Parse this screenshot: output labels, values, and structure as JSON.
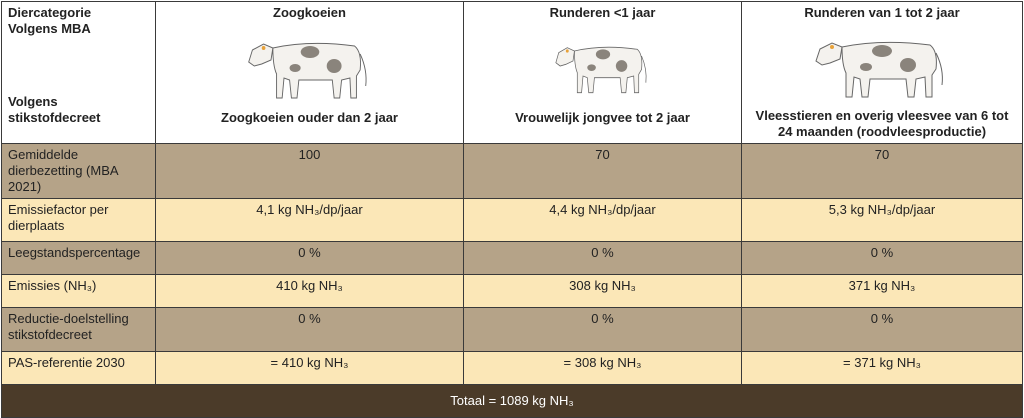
{
  "header": {
    "category_label": [
      "Diercategorie",
      "Volgens MBA"
    ],
    "decree_label": "Volgens stikstofdecreet",
    "columns": [
      {
        "title": "Zoogkoeien",
        "subtitle": "Zoogkoeien ouder dan 2 jaar"
      },
      {
        "title": "Runderen <1 jaar",
        "subtitle": "Vrouwelijk jongvee tot 2 jaar"
      },
      {
        "title": "Runderen van 1 tot 2 jaar",
        "subtitle": "Vleesstieren en overig vleesvee van 6 tot 24 maanden (roodvleesproductie)"
      }
    ]
  },
  "table": {
    "rows": [
      {
        "label": "Gemiddelde dierbezetting (MBA 2021)",
        "cells": [
          "100",
          "70",
          "70"
        ]
      },
      {
        "label": "Emissiefactor per dierplaats",
        "cells": [
          "4,1 kg NH₃/dp/jaar",
          "4,4 kg NH₃/dp/jaar",
          "5,3 kg NH₃/dp/jaar"
        ]
      },
      {
        "label": "Leegstandspercentage",
        "cells": [
          "0 %",
          "0 %",
          "0 %"
        ]
      },
      {
        "label": "Emissies (NH₃)",
        "cells": [
          "410 kg NH₃",
          "308 kg NH₃",
          "371 kg NH₃"
        ]
      },
      {
        "label": "Reductie-doelstelling stikstofdecreet",
        "cells": [
          "0 %",
          "0 %",
          "0 %"
        ]
      },
      {
        "label": "PAS-referentie 2030",
        "cells": [
          "= 410 kg NH₃",
          "= 308 kg NH₃",
          "= 371 kg NH₃"
        ]
      }
    ],
    "total": "Totaal = 1089 kg NH₃"
  }
}
